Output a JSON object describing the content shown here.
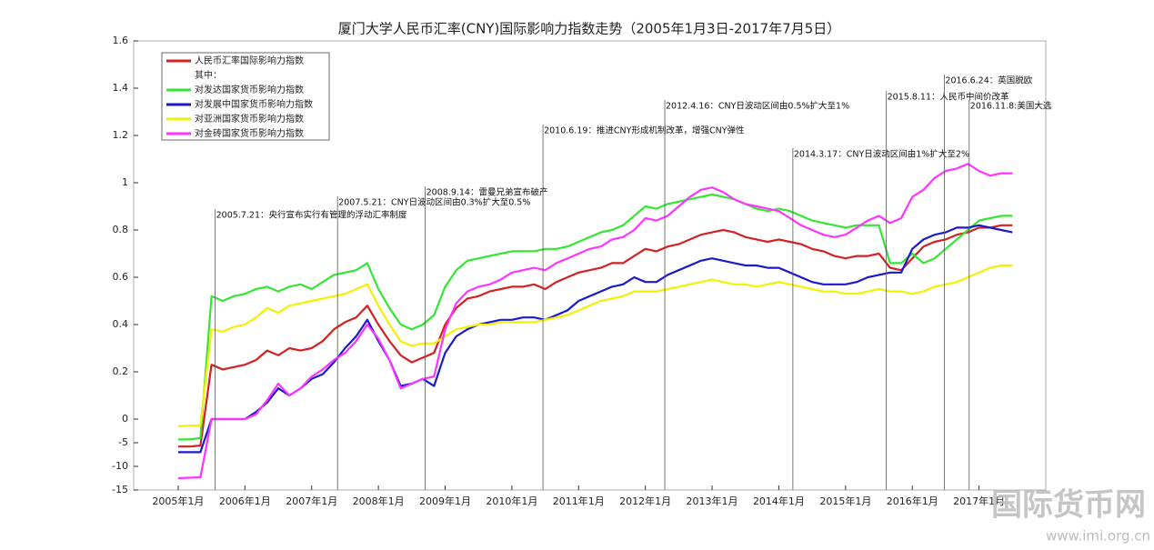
{
  "chart_data": {
    "type": "line",
    "title": "厦门大学人民币汇率(CNY)国际影响力指数走势（2005年1月3日-2017年7月5日）",
    "x": [
      "2005-01",
      "2005-03",
      "2005-05",
      "2005-07",
      "2005-09",
      "2005-11",
      "2006-01",
      "2006-03",
      "2006-05",
      "2006-07",
      "2006-09",
      "2006-11",
      "2007-01",
      "2007-03",
      "2007-05",
      "2007-07",
      "2007-09",
      "2007-11",
      "2008-01",
      "2008-03",
      "2008-05",
      "2008-07",
      "2008-09",
      "2008-11",
      "2009-01",
      "2009-03",
      "2009-05",
      "2009-07",
      "2009-09",
      "2009-11",
      "2010-01",
      "2010-03",
      "2010-05",
      "2010-07",
      "2010-09",
      "2010-11",
      "2011-01",
      "2011-03",
      "2011-05",
      "2011-07",
      "2011-09",
      "2011-11",
      "2012-01",
      "2012-03",
      "2012-05",
      "2012-07",
      "2012-09",
      "2012-11",
      "2013-01",
      "2013-03",
      "2013-05",
      "2013-07",
      "2013-09",
      "2013-11",
      "2014-01",
      "2014-03",
      "2014-05",
      "2014-07",
      "2014-09",
      "2014-11",
      "2015-01",
      "2015-03",
      "2015-05",
      "2015-07",
      "2015-09",
      "2015-11",
      "2016-01",
      "2016-03",
      "2016-05",
      "2016-07",
      "2016-09",
      "2016-11",
      "2017-01",
      "2017-03",
      "2017-05",
      "2017-07"
    ],
    "series": [
      {
        "name": "人民币汇率国际影响力指数",
        "color": "#d42020",
        "values": [
          -5.8,
          -5.8,
          -5.6,
          0.23,
          0.21,
          0.22,
          0.23,
          0.25,
          0.29,
          0.27,
          0.3,
          0.29,
          0.3,
          0.33,
          0.38,
          0.41,
          0.43,
          0.48,
          0.4,
          0.33,
          0.27,
          0.24,
          0.26,
          0.28,
          0.4,
          0.47,
          0.51,
          0.52,
          0.54,
          0.55,
          0.56,
          0.56,
          0.57,
          0.55,
          0.58,
          0.6,
          0.62,
          0.63,
          0.64,
          0.66,
          0.66,
          0.69,
          0.72,
          0.71,
          0.73,
          0.74,
          0.76,
          0.78,
          0.79,
          0.8,
          0.79,
          0.77,
          0.76,
          0.75,
          0.76,
          0.75,
          0.74,
          0.72,
          0.71,
          0.69,
          0.68,
          0.69,
          0.69,
          0.7,
          0.64,
          0.63,
          0.68,
          0.73,
          0.75,
          0.76,
          0.78,
          0.79,
          0.81,
          0.81,
          0.82,
          0.82
        ]
      },
      {
        "name": "对发达国家货币影响力指数",
        "color": "#33e633",
        "values": [
          -4.3,
          -4.3,
          -4.0,
          0.52,
          0.5,
          0.52,
          0.53,
          0.55,
          0.56,
          0.54,
          0.56,
          0.57,
          0.55,
          0.58,
          0.61,
          0.62,
          0.63,
          0.66,
          0.55,
          0.47,
          0.4,
          0.38,
          0.4,
          0.44,
          0.56,
          0.63,
          0.67,
          0.68,
          0.69,
          0.7,
          0.71,
          0.71,
          0.71,
          0.72,
          0.72,
          0.73,
          0.75,
          0.77,
          0.79,
          0.8,
          0.82,
          0.86,
          0.9,
          0.89,
          0.91,
          0.92,
          0.93,
          0.94,
          0.95,
          0.94,
          0.93,
          0.91,
          0.89,
          0.88,
          0.89,
          0.88,
          0.86,
          0.84,
          0.83,
          0.82,
          0.81,
          0.82,
          0.82,
          0.82,
          0.66,
          0.66,
          0.7,
          0.66,
          0.68,
          0.72,
          0.76,
          0.8,
          0.84,
          0.85,
          0.86,
          0.86
        ]
      },
      {
        "name": "对发展中国家货币影响力指数",
        "color": "#1a1acc",
        "values": [
          -7.0,
          -7.0,
          -7.0,
          0,
          0,
          0,
          0,
          0.03,
          0.07,
          0.13,
          0.1,
          0.13,
          0.17,
          0.19,
          0.24,
          0.3,
          0.35,
          0.42,
          0.33,
          0.25,
          0.14,
          0.15,
          0.17,
          0.14,
          0.28,
          0.35,
          0.38,
          0.4,
          0.41,
          0.42,
          0.42,
          0.43,
          0.43,
          0.42,
          0.44,
          0.46,
          0.5,
          0.52,
          0.54,
          0.56,
          0.57,
          0.6,
          0.58,
          0.58,
          0.61,
          0.63,
          0.65,
          0.67,
          0.68,
          0.67,
          0.66,
          0.65,
          0.65,
          0.64,
          0.64,
          0.62,
          0.6,
          0.58,
          0.57,
          0.57,
          0.57,
          0.58,
          0.6,
          0.61,
          0.62,
          0.62,
          0.72,
          0.76,
          0.78,
          0.79,
          0.81,
          0.81,
          0.82,
          0.81,
          0.8,
          0.79
        ]
      },
      {
        "name": "对亚洲国家货币影响力指数",
        "color": "#f2f200",
        "values": [
          -1.5,
          -1.4,
          -1.3,
          0.38,
          0.37,
          0.39,
          0.4,
          0.43,
          0.47,
          0.45,
          0.48,
          0.49,
          0.5,
          0.51,
          0.52,
          0.53,
          0.55,
          0.57,
          0.48,
          0.4,
          0.33,
          0.31,
          0.32,
          0.32,
          0.35,
          0.38,
          0.39,
          0.4,
          0.4,
          0.41,
          0.41,
          0.41,
          0.41,
          0.42,
          0.43,
          0.44,
          0.46,
          0.48,
          0.5,
          0.51,
          0.52,
          0.54,
          0.54,
          0.54,
          0.55,
          0.56,
          0.57,
          0.58,
          0.59,
          0.58,
          0.57,
          0.57,
          0.56,
          0.57,
          0.58,
          0.57,
          0.56,
          0.55,
          0.54,
          0.54,
          0.53,
          0.53,
          0.54,
          0.55,
          0.54,
          0.54,
          0.53,
          0.54,
          0.56,
          0.57,
          0.58,
          0.6,
          0.62,
          0.64,
          0.65,
          0.65
        ]
      },
      {
        "name": "对金砖国家货币影响力指数",
        "color": "#ff33ff",
        "values": [
          -12.5,
          -12.4,
          -12.3,
          0,
          0,
          0,
          0,
          0.02,
          0.08,
          0.15,
          0.1,
          0.13,
          0.18,
          0.21,
          0.25,
          0.28,
          0.33,
          0.4,
          0.34,
          0.25,
          0.13,
          0.15,
          0.17,
          0.18,
          0.38,
          0.49,
          0.54,
          0.56,
          0.57,
          0.59,
          0.62,
          0.63,
          0.64,
          0.63,
          0.66,
          0.68,
          0.7,
          0.72,
          0.73,
          0.76,
          0.77,
          0.8,
          0.85,
          0.84,
          0.86,
          0.9,
          0.94,
          0.97,
          0.98,
          0.96,
          0.93,
          0.91,
          0.9,
          0.89,
          0.88,
          0.85,
          0.82,
          0.8,
          0.78,
          0.77,
          0.78,
          0.81,
          0.84,
          0.86,
          0.83,
          0.85,
          0.94,
          0.97,
          1.02,
          1.05,
          1.06,
          1.08,
          1.05,
          1.03,
          1.04,
          1.04
        ]
      }
    ],
    "legend_note": "其中：",
    "legend_position": "upper left",
    "xlim": [
      "2004-05",
      "2018-01"
    ],
    "xticks": [
      {
        "value": "2005-01",
        "label": "2005年1月"
      },
      {
        "value": "2006-01",
        "label": "2006年1月"
      },
      {
        "value": "2007-01",
        "label": "2007年1月"
      },
      {
        "value": "2008-01",
        "label": "2008年1月"
      },
      {
        "value": "2009-01",
        "label": "2009年1月"
      },
      {
        "value": "2010-01",
        "label": "2010年1月"
      },
      {
        "value": "2011-01",
        "label": "2011年1月"
      },
      {
        "value": "2012-01",
        "label": "2012年1月"
      },
      {
        "value": "2013-01",
        "label": "2013年1月"
      },
      {
        "value": "2014-01",
        "label": "2014年1月"
      },
      {
        "value": "2015-01",
        "label": "2015年1月"
      },
      {
        "value": "2016-01",
        "label": "2016年1月"
      },
      {
        "value": "2017-01",
        "label": "2017年1月"
      }
    ],
    "ylim": [
      -15,
      1.6
    ],
    "yticks": [
      -15,
      -10,
      -5,
      0,
      0.2,
      0.4,
      0.6,
      0.8,
      1,
      1.2,
      1.4,
      1.6
    ],
    "annotations": [
      {
        "x": "2005-07-21",
        "text": "2005.7.21：央行宣布实行有管理的浮动汇率制度"
      },
      {
        "x": "2007-05-21",
        "text": "2007.5.21：CNY日波动区间由0.3%扩大至0.5%"
      },
      {
        "x": "2008-09-14",
        "text": "2008.9.14：雷曼兄弟宣布破产"
      },
      {
        "x": "2010-06-19",
        "text": "2010.6.19：推进CNY形成机制改革，增强CNY弹性"
      },
      {
        "x": "2012-04-16",
        "text": "2012.4.16：CNY日波动区间由0.5%扩大至1%"
      },
      {
        "x": "2014-03-17",
        "text": "2014.3.17：CNY日波动区间由1%扩大至2%"
      },
      {
        "x": "2015-08-11",
        "text": "2015.8.11：人民币中间价改革"
      },
      {
        "x": "2016-06-24",
        "text": "2016.6.24：英国脱欧"
      },
      {
        "x": "2016-11-08",
        "text": "2016.11.8:美国大选"
      }
    ],
    "watermark": {
      "logo": "国际货币网",
      "url": "www.imi.org.cn"
    }
  }
}
